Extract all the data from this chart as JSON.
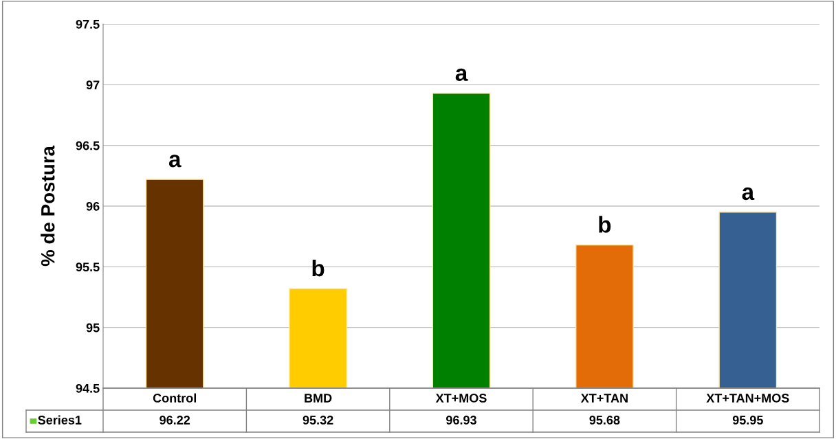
{
  "chart_data": {
    "type": "bar",
    "ylabel": "% de Postura",
    "categories": [
      "Control",
      "BMD",
      "XT+MOS",
      "XT+TAN",
      "XT+TAN+MOS"
    ],
    "series": [
      {
        "name": "Series1",
        "color": "#66cc33",
        "colors": [
          "#663300",
          "#ffcc00",
          "#008000",
          "#e36c09",
          "#366092"
        ],
        "values": [
          96.22,
          95.32,
          96.93,
          95.68,
          95.95
        ]
      }
    ],
    "ylim": [
      94.5,
      97.5
    ],
    "yticks": [
      94.5,
      95,
      95.5,
      96,
      96.5,
      97,
      97.5
    ],
    "grid": "y",
    "data_labels": true,
    "legend": "bottom left",
    "annotations": [
      {
        "text": "a",
        "x": "Control",
        "y": 96.22
      },
      {
        "text": "b",
        "x": "BMD",
        "y": 95.32
      },
      {
        "text": "a",
        "x": "XT+MOS",
        "y": 96.93
      },
      {
        "text": "b",
        "x": "XT+TAN",
        "y": 95.68
      },
      {
        "text": "a",
        "x": "XT+TAN+MOS",
        "y": 95.95
      }
    ]
  }
}
